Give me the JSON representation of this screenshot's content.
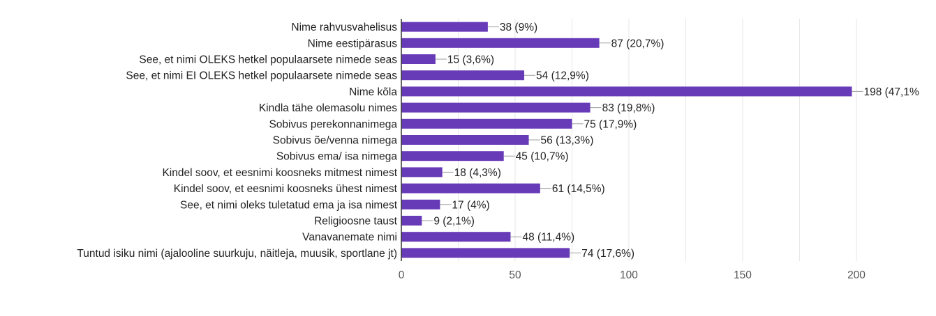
{
  "chart_data": {
    "type": "bar",
    "orientation": "horizontal",
    "categories": [
      "Nime rahvusvahelisus",
      "Nime eestipärasus",
      "See, et nimi OLEKS hetkel populaarsete nimede seas",
      "See, et nimi EI OLEKS hetkel populaarsete nimede seas",
      "Nime kõla",
      "Kindla tähe olemasolu nimes",
      "Sobivus perekonnanimega",
      "Sobivus õe/venna nimega",
      "Sobivus ema/ isa nimega",
      "Kindel soov, et eesnimi koosneks mitmest nimest",
      "Kindel soov, et eesnimi koosneks ühest nimest",
      "See, et nimi oleks tuletatud ema ja isa nimest",
      "Religioosne taust",
      "Vanavanemate nimi",
      "Tuntud isiku nimi (ajalooline suurkuju, näitleja, muusik, sportlane jt)"
    ],
    "values": [
      38,
      87,
      15,
      54,
      198,
      83,
      75,
      56,
      45,
      18,
      61,
      17,
      9,
      48,
      74
    ],
    "value_labels": [
      "38 (9%)",
      "87 (20,7%)",
      "15 (3,6%)",
      "54 (12,9%)",
      "198 (47,1%",
      "83 (19,8%)",
      "75 (17,9%)",
      "56 (13,3%)",
      "45 (10,7%)",
      "18 (4,3%)",
      "61 (14,5%)",
      "17 (4%)",
      "9 (2,1%)",
      "48 (11,4%)",
      "74 (17,6%)"
    ],
    "xlim": [
      0,
      200
    ],
    "xticks": [
      0,
      50,
      100,
      150,
      200
    ],
    "xtick_labels": [
      "0",
      "50",
      "100",
      "150",
      "200"
    ],
    "grid": "vertical",
    "legend": "none",
    "title": "",
    "xlabel": "",
    "ylabel": "",
    "colors": {
      "bar": "#673ab7",
      "grid": "#e6e6e6",
      "axis": "#333333",
      "leader": "#9e9e9e"
    }
  }
}
